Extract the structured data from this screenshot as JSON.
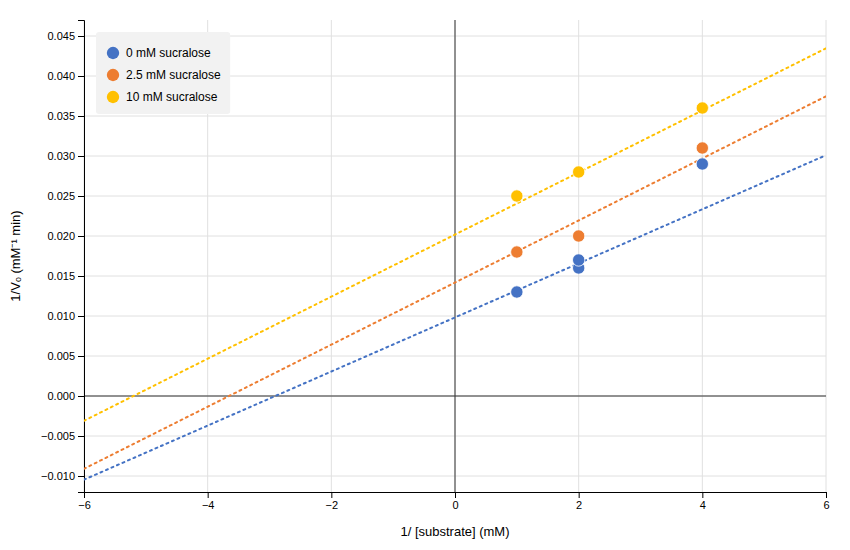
{
  "chart_data": {
    "type": "scatter",
    "xlabel": "1/ [substrate] (mM)",
    "ylabel": "1/Vₒ (mM⁻¹ min)",
    "series": [
      {
        "name": "0 mM sucralose",
        "color": "#4472C4",
        "marker": "circle",
        "line_style": "dotted",
        "x": [
          1,
          2,
          2,
          4
        ],
        "values": [
          0.013,
          0.016,
          0.017,
          0.029
        ],
        "trend_x": [
          -6,
          6
        ],
        "trend_values": [
          -0.01046,
          0.0301
        ]
      },
      {
        "name": "2.5 mM sucralose",
        "color": "#ED7D31",
        "marker": "circle",
        "line_style": "dotted",
        "x": [
          1,
          2,
          4
        ],
        "values": [
          0.018,
          0.02,
          0.031
        ],
        "trend_x": [
          -6,
          6
        ],
        "trend_values": [
          -0.0091,
          0.03746
        ]
      },
      {
        "name": "10 mM sucralose",
        "color": "#FFC000",
        "marker": "circle",
        "line_style": "dotted",
        "x": [
          1,
          2,
          4
        ],
        "values": [
          0.025,
          0.028,
          0.036
        ],
        "trend_x": [
          -6,
          6
        ],
        "trend_values": [
          -0.0031,
          0.04346
        ]
      }
    ],
    "xlim": [
      -6,
      6
    ],
    "ylim": [
      -0.012,
      0.047
    ],
    "xticks": [
      {
        "value": -6,
        "label": "−6"
      },
      {
        "value": -4,
        "label": "−4"
      },
      {
        "value": -2,
        "label": "−2"
      },
      0,
      2,
      4,
      6
    ],
    "yticks": [
      {
        "value": -0.01,
        "label": "−0.010"
      },
      {
        "value": -0.005,
        "label": "−0.005"
      },
      {
        "value": 0,
        "label": "0.000"
      },
      0.005,
      {
        "value": 0.01,
        "label": "0.010"
      },
      0.015,
      {
        "value": 0.02,
        "label": "0.020"
      },
      0.025,
      {
        "value": 0.03,
        "label": "0.030"
      },
      0.035,
      {
        "value": 0.04,
        "label": "0.040"
      },
      0.045
    ],
    "grid": true,
    "legend": "top-left"
  }
}
